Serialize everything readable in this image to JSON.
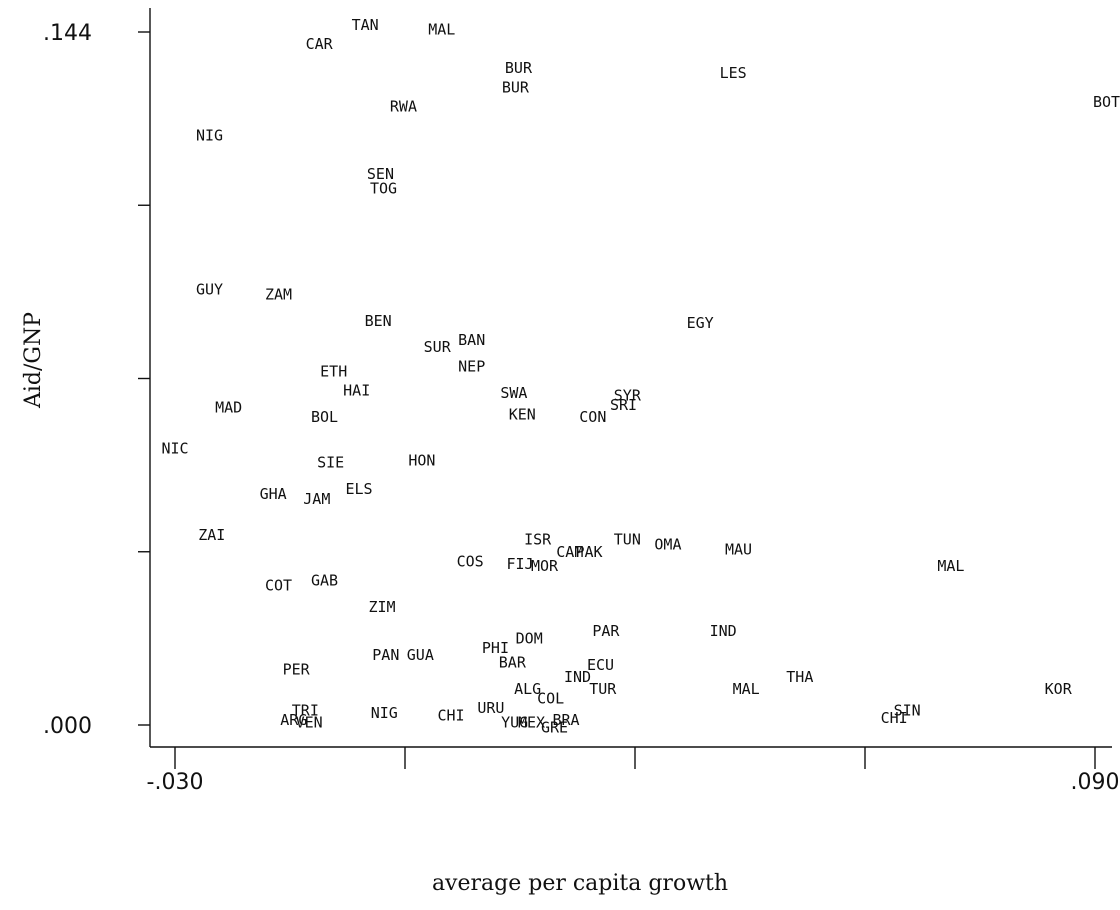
{
  "chart_data": {
    "type": "scatter",
    "xlabel": "average per capita growth",
    "ylabel": "Aid/GNP",
    "xlim": [
      -0.03,
      0.09
    ],
    "ylim": [
      0.0,
      0.144
    ],
    "x_ticks": [
      -0.03,
      0.0,
      0.03,
      0.06,
      0.09
    ],
    "y_ticks": [
      0.0,
      0.036,
      0.072,
      0.108,
      0.144
    ],
    "x_tick_labels": [
      "-.030",
      "",
      "",
      "",
      ".090"
    ],
    "y_tick_labels": [
      ".000",
      "",
      "",
      "",
      ".144"
    ],
    "points": [
      {
        "label": "TAN",
        "x": -0.0052,
        "y": 0.1455
      },
      {
        "label": "MAL",
        "x": 0.0048,
        "y": 0.1445
      },
      {
        "label": "CAR",
        "x": -0.0112,
        "y": 0.1415
      },
      {
        "label": "BUR",
        "x": 0.0148,
        "y": 0.1365
      },
      {
        "label": "BUR",
        "x": 0.0144,
        "y": 0.1325
      },
      {
        "label": "LES",
        "x": 0.0428,
        "y": 0.1355
      },
      {
        "label": "BOT",
        "x": 0.0915,
        "y": 0.1295
      },
      {
        "label": "RWA",
        "x": -0.0002,
        "y": 0.1285
      },
      {
        "label": "NIG",
        "x": -0.0255,
        "y": 0.1225
      },
      {
        "label": "SEN",
        "x": -0.0032,
        "y": 0.1145
      },
      {
        "label": "TOG",
        "x": -0.0028,
        "y": 0.1115
      },
      {
        "label": "GUY",
        "x": -0.0255,
        "y": 0.0905
      },
      {
        "label": "ZAM",
        "x": -0.0165,
        "y": 0.0895
      },
      {
        "label": "BEN",
        "x": -0.0035,
        "y": 0.084
      },
      {
        "label": "EGY",
        "x": 0.0385,
        "y": 0.0835
      },
      {
        "label": "BAN",
        "x": 0.0087,
        "y": 0.08
      },
      {
        "label": "SUR",
        "x": 0.0042,
        "y": 0.0785
      },
      {
        "label": "NEP",
        "x": 0.0087,
        "y": 0.0745
      },
      {
        "label": "ETH",
        "x": -0.0093,
        "y": 0.0735
      },
      {
        "label": "HAI",
        "x": -0.0063,
        "y": 0.0695
      },
      {
        "label": "SWA",
        "x": 0.0142,
        "y": 0.069
      },
      {
        "label": "SYR",
        "x": 0.029,
        "y": 0.0685
      },
      {
        "label": "SRI",
        "x": 0.0285,
        "y": 0.0665
      },
      {
        "label": "MAD",
        "x": -0.023,
        "y": 0.066
      },
      {
        "label": "BOL",
        "x": -0.0105,
        "y": 0.064
      },
      {
        "label": "KEN",
        "x": 0.0153,
        "y": 0.0645
      },
      {
        "label": "CON",
        "x": 0.0245,
        "y": 0.064
      },
      {
        "label": "NIC",
        "x": -0.03,
        "y": 0.0575
      },
      {
        "label": "SIE",
        "x": -0.0097,
        "y": 0.0545
      },
      {
        "label": "HON",
        "x": 0.0022,
        "y": 0.055
      },
      {
        "label": "GHA",
        "x": -0.0172,
        "y": 0.048
      },
      {
        "label": "JAM",
        "x": -0.0115,
        "y": 0.047
      },
      {
        "label": "ELS",
        "x": -0.006,
        "y": 0.049
      },
      {
        "label": "ZAI",
        "x": -0.0252,
        "y": 0.0395
      },
      {
        "label": "ISR",
        "x": 0.0173,
        "y": 0.0385
      },
      {
        "label": "CAM",
        "x": 0.0215,
        "y": 0.036
      },
      {
        "label": "PAK",
        "x": 0.024,
        "y": 0.036
      },
      {
        "label": "TUN",
        "x": 0.029,
        "y": 0.0385
      },
      {
        "label": "OMA",
        "x": 0.0343,
        "y": 0.0375
      },
      {
        "label": "MAU",
        "x": 0.0435,
        "y": 0.0365
      },
      {
        "label": "COS",
        "x": 0.0085,
        "y": 0.034
      },
      {
        "label": "FIJ",
        "x": 0.015,
        "y": 0.0335
      },
      {
        "label": "MOR",
        "x": 0.0182,
        "y": 0.033
      },
      {
        "label": "MAL",
        "x": 0.0712,
        "y": 0.033
      },
      {
        "label": "COT",
        "x": -0.0165,
        "y": 0.029
      },
      {
        "label": "GAB",
        "x": -0.0105,
        "y": 0.03
      },
      {
        "label": "ZIM",
        "x": -0.003,
        "y": 0.0245
      },
      {
        "label": "PAR",
        "x": 0.0262,
        "y": 0.0195
      },
      {
        "label": "IND",
        "x": 0.0415,
        "y": 0.0195
      },
      {
        "label": "DOM",
        "x": 0.0162,
        "y": 0.018
      },
      {
        "label": "PHI",
        "x": 0.0118,
        "y": 0.016
      },
      {
        "label": "PAN",
        "x": -0.0025,
        "y": 0.0145
      },
      {
        "label": "GUA",
        "x": 0.002,
        "y": 0.0145
      },
      {
        "label": "BAR",
        "x": 0.014,
        "y": 0.013
      },
      {
        "label": "PER",
        "x": -0.0142,
        "y": 0.0115
      },
      {
        "label": "ECU",
        "x": 0.0255,
        "y": 0.0125
      },
      {
        "label": "IND",
        "x": 0.0225,
        "y": 0.01
      },
      {
        "label": "THA",
        "x": 0.0515,
        "y": 0.01
      },
      {
        "label": "ALG",
        "x": 0.016,
        "y": 0.0075
      },
      {
        "label": "TUR",
        "x": 0.0258,
        "y": 0.0075
      },
      {
        "label": "MAL",
        "x": 0.0445,
        "y": 0.0075
      },
      {
        "label": "KOR",
        "x": 0.0852,
        "y": 0.0075
      },
      {
        "label": "COL",
        "x": 0.019,
        "y": 0.0055
      },
      {
        "label": "URU",
        "x": 0.0112,
        "y": 0.0035
      },
      {
        "label": "SIN",
        "x": 0.0655,
        "y": 0.003
      },
      {
        "label": "TRI",
        "x": -0.013,
        "y": 0.003
      },
      {
        "label": "NIG",
        "x": -0.0027,
        "y": 0.0025
      },
      {
        "label": "CHI",
        "x": 0.006,
        "y": 0.002
      },
      {
        "label": "VEN",
        "x": -0.0125,
        "y": 0.0005
      },
      {
        "label": "ARG",
        "x": -0.0145,
        "y": 0.001
      },
      {
        "label": "YUG",
        "x": 0.0143,
        "y": 0.0005
      },
      {
        "label": "MEX",
        "x": 0.0165,
        "y": 0.0005
      },
      {
        "label": "BRA",
        "x": 0.021,
        "y": 0.001
      },
      {
        "label": "GRE",
        "x": 0.0195,
        "y": -0.0005
      },
      {
        "label": "CHI",
        "x": 0.0638,
        "y": 0.0015
      }
    ]
  }
}
